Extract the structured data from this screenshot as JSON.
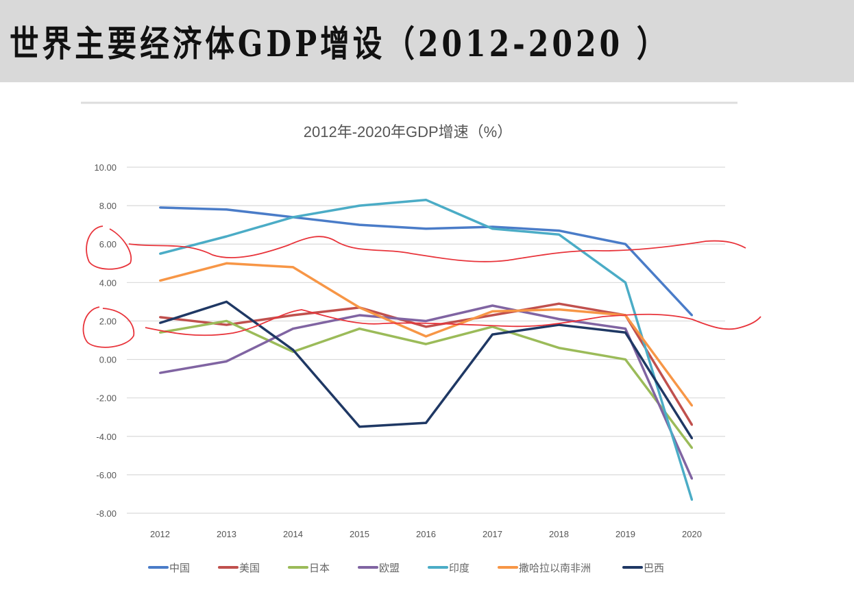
{
  "header": {
    "title": "世界主要经济体GDP增设（2012-2020 ）"
  },
  "chart_data": {
    "type": "line",
    "title": "2012年-2020年GDP增速（%）",
    "xlabel": "",
    "ylabel": "",
    "x": [
      "2012",
      "2013",
      "2014",
      "2015",
      "2016",
      "2017",
      "2018",
      "2019",
      "2020"
    ],
    "ylim": [
      -8,
      10
    ],
    "yticks": [
      "10.00",
      "8.00",
      "6.00",
      "4.00",
      "2.00",
      "0.00",
      "-2.00",
      "-4.00",
      "-6.00",
      "-8.00"
    ],
    "grid": true,
    "legend": "bottom",
    "series": [
      {
        "name": "中国",
        "color": "#4a7cc8",
        "values": [
          7.9,
          7.8,
          7.4,
          7.0,
          6.8,
          6.9,
          6.7,
          6.0,
          2.3
        ]
      },
      {
        "name": "美国",
        "color": "#c0504d",
        "values": [
          2.2,
          1.8,
          2.3,
          2.7,
          1.7,
          2.3,
          2.9,
          2.3,
          -3.4
        ]
      },
      {
        "name": "日本",
        "color": "#9bbb59",
        "values": [
          1.4,
          2.0,
          0.4,
          1.6,
          0.8,
          1.7,
          0.6,
          0.0,
          -4.6
        ]
      },
      {
        "name": "欧盟",
        "color": "#8064a2",
        "values": [
          -0.7,
          -0.1,
          1.6,
          2.3,
          2.0,
          2.8,
          2.1,
          1.6,
          -6.2
        ]
      },
      {
        "name": "印度",
        "color": "#4bacc6",
        "values": [
          5.5,
          6.4,
          7.4,
          8.0,
          8.3,
          6.8,
          6.5,
          4.0,
          -7.3
        ]
      },
      {
        "name": "撒哈拉以南非洲",
        "color": "#f79646",
        "values": [
          4.1,
          5.0,
          4.8,
          2.7,
          1.2,
          2.5,
          2.6,
          2.3,
          -2.4
        ]
      },
      {
        "name": "巴西",
        "color": "#1f3864",
        "values": [
          1.9,
          3.0,
          0.5,
          -3.5,
          -3.3,
          1.3,
          1.8,
          1.4,
          -4.1
        ]
      }
    ]
  }
}
